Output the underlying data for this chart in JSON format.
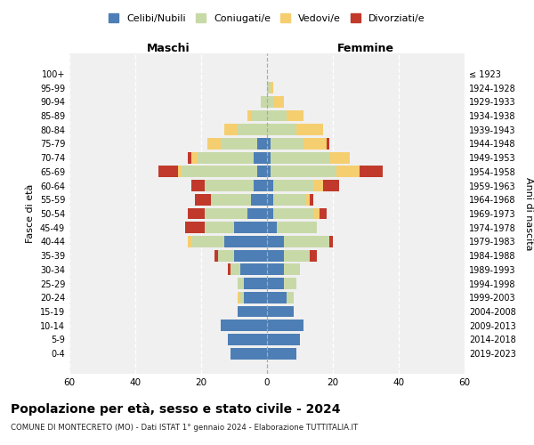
{
  "age_groups": [
    "0-4",
    "5-9",
    "10-14",
    "15-19",
    "20-24",
    "25-29",
    "30-34",
    "35-39",
    "40-44",
    "45-49",
    "50-54",
    "55-59",
    "60-64",
    "65-69",
    "70-74",
    "75-79",
    "80-84",
    "85-89",
    "90-94",
    "95-99",
    "100+"
  ],
  "birth_years": [
    "2019-2023",
    "2014-2018",
    "2009-2013",
    "2004-2008",
    "1999-2003",
    "1994-1998",
    "1989-1993",
    "1984-1988",
    "1979-1983",
    "1974-1978",
    "1969-1973",
    "1964-1968",
    "1959-1963",
    "1954-1958",
    "1949-1953",
    "1944-1948",
    "1939-1943",
    "1934-1938",
    "1929-1933",
    "1924-1928",
    "≤ 1923"
  ],
  "males": {
    "celibi": [
      11,
      12,
      14,
      9,
      7,
      7,
      8,
      10,
      13,
      10,
      6,
      5,
      4,
      3,
      4,
      3,
      0,
      0,
      0,
      0,
      0
    ],
    "coniugati": [
      0,
      0,
      0,
      0,
      1,
      2,
      3,
      5,
      10,
      9,
      13,
      12,
      15,
      23,
      17,
      11,
      9,
      5,
      2,
      0,
      0
    ],
    "vedovi": [
      0,
      0,
      0,
      0,
      1,
      0,
      0,
      0,
      1,
      0,
      0,
      0,
      0,
      1,
      2,
      4,
      4,
      1,
      0,
      0,
      0
    ],
    "divorziati": [
      0,
      0,
      0,
      0,
      0,
      0,
      1,
      1,
      0,
      6,
      5,
      5,
      4,
      6,
      1,
      0,
      0,
      0,
      0,
      0,
      0
    ]
  },
  "females": {
    "nubili": [
      9,
      10,
      11,
      8,
      6,
      5,
      5,
      5,
      5,
      3,
      2,
      2,
      2,
      1,
      1,
      1,
      0,
      0,
      0,
      0,
      0
    ],
    "coniugate": [
      0,
      0,
      0,
      0,
      2,
      4,
      5,
      8,
      14,
      12,
      12,
      10,
      12,
      20,
      18,
      10,
      9,
      6,
      2,
      1,
      0
    ],
    "vedove": [
      0,
      0,
      0,
      0,
      0,
      0,
      0,
      0,
      0,
      0,
      2,
      1,
      3,
      7,
      6,
      7,
      8,
      5,
      3,
      1,
      0
    ],
    "divorziate": [
      0,
      0,
      0,
      0,
      0,
      0,
      0,
      2,
      1,
      0,
      2,
      1,
      5,
      7,
      0,
      1,
      0,
      0,
      0,
      0,
      0
    ]
  },
  "colors": {
    "celibi": "#4d7eb5",
    "coniugati": "#c8d9a8",
    "vedovi": "#f5ce70",
    "divorziati": "#c0392b"
  },
  "xlim": 60,
  "title": "Popolazione per età, sesso e stato civile - 2024",
  "subtitle": "COMUNE DI MONTECRETO (MO) - Dati ISTAT 1° gennaio 2024 - Elaborazione TUTTITALIA.IT",
  "ylabel_left": "Fasce di età",
  "ylabel_right": "Anni di nascita",
  "xlabel_left": "Maschi",
  "xlabel_right": "Femmine",
  "legend_labels": [
    "Celibi/Nubili",
    "Coniugati/e",
    "Vedovi/e",
    "Divorziati/e"
  ],
  "bg_color": "#f0f0f0",
  "grid_color": "#ffffff"
}
